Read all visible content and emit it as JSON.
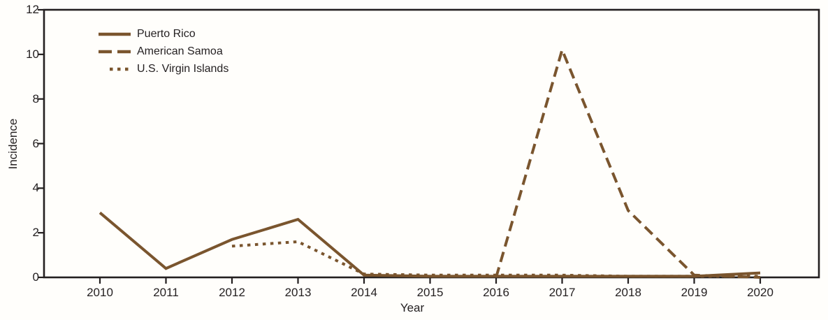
{
  "chart_data": {
    "type": "line",
    "xlabel": "Year",
    "ylabel": "Incidence",
    "x_ticks": [
      2010,
      2011,
      2012,
      2013,
      2014,
      2015,
      2016,
      2017,
      2018,
      2019,
      2020
    ],
    "y_ticks": [
      0,
      2,
      4,
      6,
      8,
      10,
      12
    ],
    "ylim": [
      0,
      12
    ],
    "xlim": [
      2009.15,
      2020.89
    ],
    "grid": false,
    "legend_position": "top-left-inside",
    "line_color": "#7a552e",
    "axis_color": "#231f20",
    "series": [
      {
        "name": "Puerto Rico",
        "style": "solid",
        "x": [
          2010,
          2011,
          2012,
          2013,
          2014,
          2015,
          2016,
          2017,
          2018,
          2019,
          2020
        ],
        "values": [
          2.9,
          0.4,
          1.7,
          2.6,
          0.1,
          0.05,
          0.05,
          0.05,
          0.05,
          0.05,
          0.2
        ]
      },
      {
        "name": "American Samoa",
        "style": "dashed",
        "x": [
          2016,
          2017,
          2018,
          2019,
          2020
        ],
        "values": [
          0,
          10.2,
          3.0,
          0.1,
          0
        ]
      },
      {
        "name": "U.S. Virgin Islands",
        "style": "dotted",
        "x": [
          2012,
          2013,
          2014,
          2015,
          2016,
          2017,
          2018,
          2019,
          2020
        ],
        "values": [
          1.4,
          1.6,
          0.15,
          0.1,
          0.1,
          0.1,
          0.05,
          0.05,
          0.05
        ]
      }
    ]
  }
}
